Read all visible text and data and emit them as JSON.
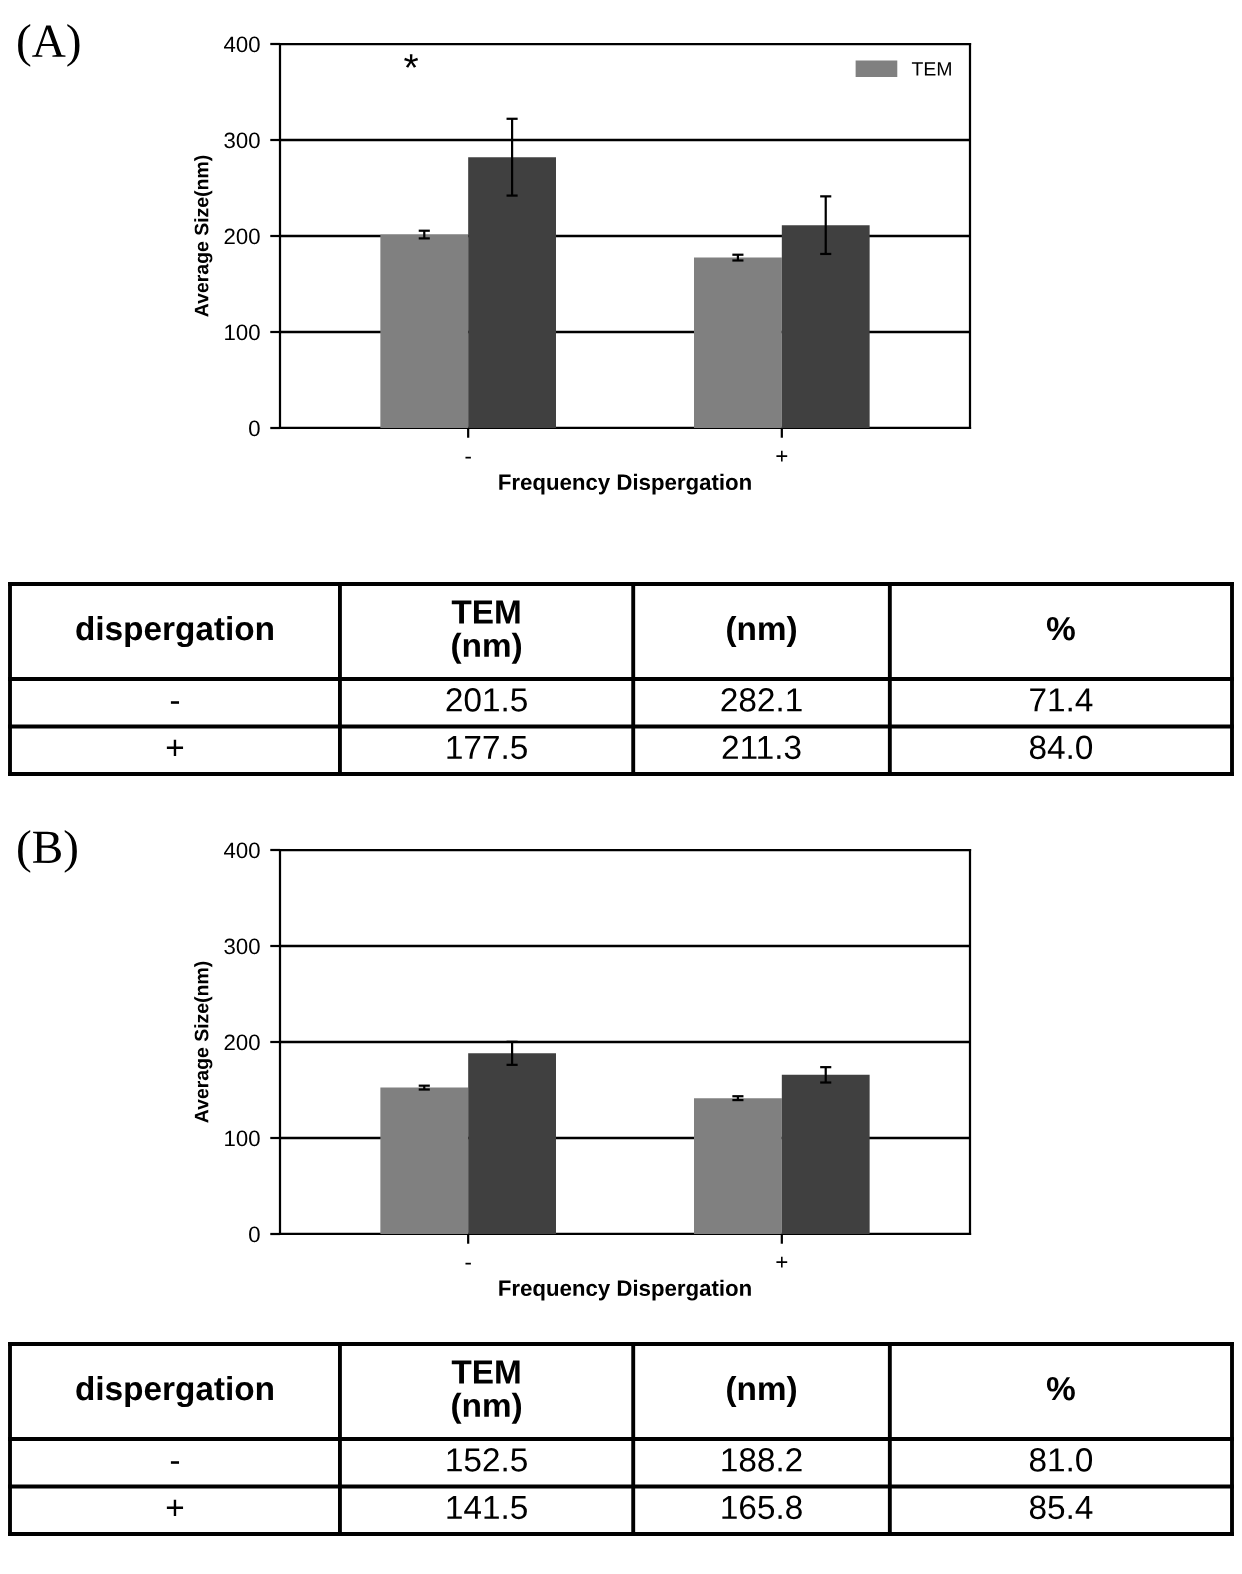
{
  "chart_data": [
    {
      "type": "bar",
      "xlabel": "Frequency Dispergation",
      "ylabel": "Average Size(nm)",
      "categories": [
        "-",
        "+"
      ],
      "series": [
        {
          "name": "TEM",
          "color": "#808080",
          "values": [
            201.5,
            177.5
          ],
          "errors": [
            4,
            3
          ]
        },
        {
          "color": "#404040",
          "values": [
            282.1,
            211.3
          ],
          "errors": [
            40,
            30
          ]
        }
      ],
      "ylim": [
        0,
        400
      ],
      "yticks": [
        0,
        100,
        200,
        300,
        400
      ],
      "grid": "y",
      "legend": "top right",
      "annotations": [
        "(A)",
        "*"
      ]
    },
    {
      "type": "other",
      "annotations": [
        "dispergation",
        "TEM\n(nm)",
        "(nm)",
        "%",
        "-",
        "201.5",
        "282.1",
        "71.4",
        "+",
        "177.5",
        "211.3",
        "84.0"
      ]
    },
    {
      "type": "bar",
      "xlabel": "Frequency Dispergation",
      "ylabel": "Average Size(nm)",
      "categories": [
        "-",
        "+"
      ],
      "series": [
        {
          "color": "#808080",
          "values": [
            152.5,
            141.5
          ],
          "errors": [
            2,
            2
          ]
        },
        {
          "color": "#404040",
          "values": [
            188.2,
            165.8
          ],
          "errors": [
            12,
            8
          ]
        }
      ],
      "ylim": [
        0,
        400
      ],
      "yticks": [
        0,
        100,
        200,
        300,
        400
      ],
      "grid": "y",
      "annotations": [
        "(B)"
      ]
    },
    {
      "type": "other",
      "annotations": [
        "dispergation",
        "TEM\n(nm)",
        "(nm)",
        "%",
        "-",
        "152.5",
        "188.2",
        "81.0",
        "+",
        "141.5",
        "165.8",
        "85.4"
      ]
    }
  ]
}
